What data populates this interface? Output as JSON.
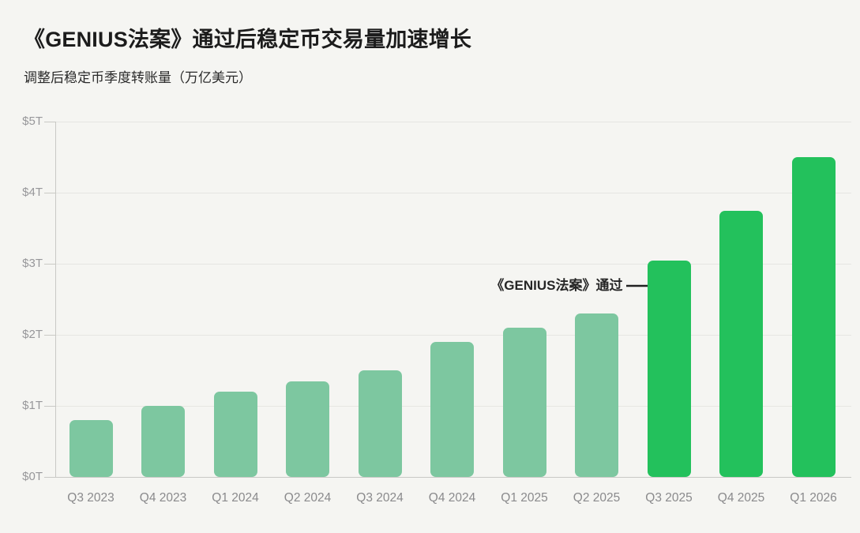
{
  "page": {
    "background": "#f5f5f2"
  },
  "header": {
    "title": "《GENIUS法案》通过后稳定币交易量加速增长",
    "subtitle": "调整后稳定币季度转账量（万亿美元）"
  },
  "colors": {
    "background": "#f5f5f2",
    "title_text": "#1c1c1c",
    "subtitle_text": "#2a2a2a",
    "bar_default": "#7dc7a0",
    "bar_highlight": "#23c15c",
    "gridline": "#e6e6e2",
    "axis_line": "#c9c9c5",
    "y_label_text": "#97979a",
    "x_label_text": "#8a8a8c",
    "annotation_text": "#262626",
    "arrow": "#222222"
  },
  "chart_data": {
    "type": "bar",
    "title": "《GENIUS法案》通过后稳定币交易量加速增长",
    "subtitle": "调整后稳定币季度转账量（万亿美元）",
    "xlabel": "",
    "ylabel": "调整后稳定币季度转账量（万亿美元）",
    "categories": [
      "Q3 2023",
      "Q4 2023",
      "Q1 2024",
      "Q2 2024",
      "Q3 2024",
      "Q4 2024",
      "Q1 2025",
      "Q2 2025",
      "Q3 2025",
      "Q4 2025",
      "Q1 2026"
    ],
    "values": [
      0.8,
      1.0,
      1.2,
      1.35,
      1.5,
      1.9,
      2.1,
      2.3,
      3.05,
      3.75,
      4.5
    ],
    "units": "trillion USD",
    "ylim": [
      0,
      5
    ],
    "y_ticks": [
      "$0T",
      "$1T",
      "$2T",
      "$3T",
      "$4T",
      "$5T"
    ],
    "grid": true,
    "legend": "none",
    "highlight_categories": [
      "Q3 2025",
      "Q4 2025",
      "Q1 2026"
    ],
    "annotation": {
      "text": "《GENIUS法案》通过",
      "target_category": "Q3 2025",
      "y_value": 2.69,
      "arrow_direction": "right"
    }
  }
}
